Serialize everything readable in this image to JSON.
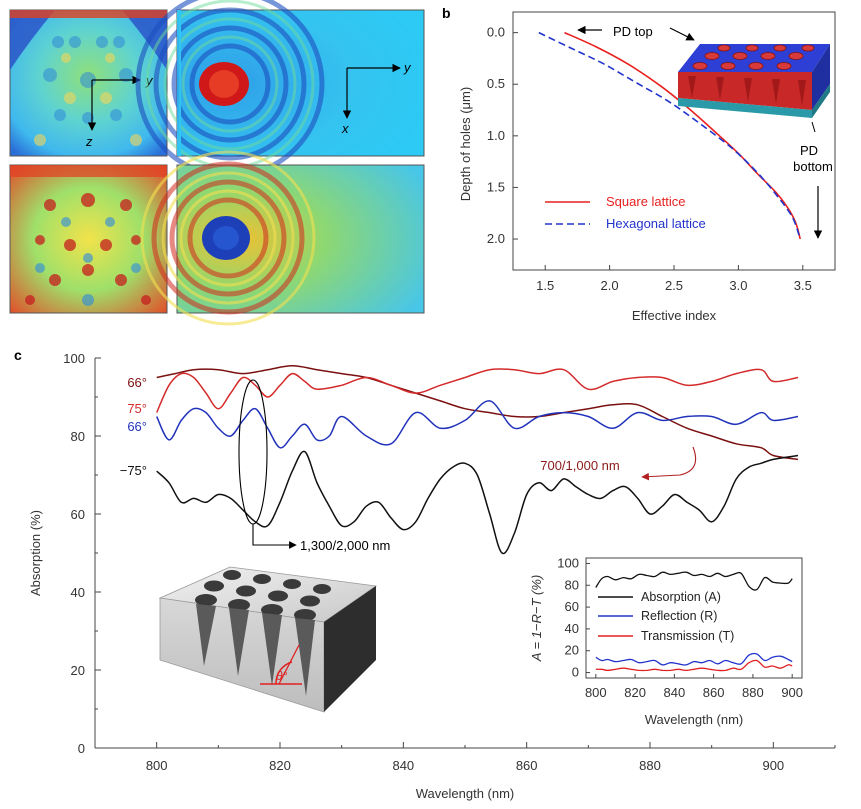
{
  "panel_labels": {
    "a": "a",
    "b": "b",
    "c": "c"
  },
  "panel_a": {
    "axes_tl": {
      "h": "y",
      "v": "z"
    },
    "axes_tr": {
      "h": "y",
      "v": "x"
    }
  },
  "chart_data": [
    {
      "id": "b",
      "type": "line",
      "xlabel": "Effective index",
      "ylabel": "Depth of holes (μm)",
      "xlim": [
        1.25,
        3.75
      ],
      "ylim": [
        2.3,
        -0.2
      ],
      "xticks": [
        "1.5",
        "2.0",
        "2.5",
        "3.0",
        "3.5"
      ],
      "yticks": [
        "0.0",
        "0.5",
        "1.0",
        "1.5",
        "2.0"
      ],
      "annotations": {
        "pd_top": "PD top",
        "pd_bottom_1": "PD",
        "pd_bottom_2": "bottom"
      },
      "series": [
        {
          "name": "Square lattice",
          "color": "#e8201e",
          "style": "solid",
          "x": [
            1.65,
            1.9,
            2.15,
            2.4,
            2.6,
            2.8,
            3.0,
            3.15,
            3.3,
            3.4,
            3.45,
            3.48
          ],
          "y": [
            0.0,
            0.14,
            0.31,
            0.52,
            0.72,
            0.94,
            1.17,
            1.37,
            1.56,
            1.73,
            1.86,
            2.0
          ]
        },
        {
          "name": "Hexagonal lattice",
          "color": "#2233cc",
          "style": "dashed",
          "x": [
            1.45,
            1.7,
            1.95,
            2.2,
            2.45,
            2.7,
            2.95,
            3.15,
            3.3,
            3.42,
            3.48
          ],
          "y": [
            0.0,
            0.15,
            0.3,
            0.48,
            0.66,
            0.88,
            1.12,
            1.36,
            1.58,
            1.79,
            2.0
          ]
        }
      ]
    },
    {
      "id": "c",
      "type": "line",
      "xlabel": "Wavelength (nm)",
      "ylabel": "Absorption (%)",
      "xlim": [
        790,
        910
      ],
      "ylim": [
        0,
        100
      ],
      "xticks": [
        "800",
        "820",
        "840",
        "860",
        "880",
        "900"
      ],
      "yticks": [
        "0",
        "20",
        "40",
        "60",
        "80",
        "100"
      ],
      "annotations": {
        "ellipse_label": "1,300/2,000 nm",
        "arrow_label": "700/1,000 nm",
        "theta": "θ°"
      },
      "series": [
        {
          "name": "66°",
          "color": "#7a1010",
          "style": "solid",
          "x": [
            800,
            803,
            806,
            810,
            814,
            818,
            822,
            826,
            830,
            834,
            838,
            842,
            846,
            850,
            854,
            858,
            862,
            866,
            870,
            874,
            878,
            882,
            886,
            890,
            894,
            898,
            900,
            904
          ],
          "y": [
            95,
            96,
            97,
            97,
            96,
            97,
            98,
            97,
            96,
            95,
            93,
            91,
            89,
            87,
            86,
            85,
            85,
            86,
            87,
            88,
            88,
            85,
            82,
            80,
            78,
            77,
            75,
            74
          ]
        },
        {
          "name": "75°",
          "color": "#d42a2a",
          "style": "solid",
          "x": [
            800,
            802,
            804,
            806,
            808,
            810,
            812,
            814,
            816,
            818,
            820,
            822,
            824,
            826,
            830,
            834,
            838,
            842,
            846,
            850,
            854,
            858,
            862,
            866,
            870,
            874,
            878,
            882,
            886,
            890,
            894,
            898,
            900,
            904
          ],
          "y": [
            86,
            93,
            96,
            95,
            91,
            87,
            91,
            95,
            93,
            90,
            93,
            96,
            94,
            92,
            93,
            95,
            93,
            91,
            93,
            95,
            97,
            97,
            96,
            97,
            92,
            94,
            95,
            95,
            93,
            94,
            96,
            97,
            94,
            95
          ]
        },
        {
          "name": "66°",
          "color": "#2233bb",
          "style": "solid",
          "x": [
            800,
            802,
            804,
            806,
            808,
            810,
            812,
            814,
            816,
            818,
            820,
            822,
            824,
            826,
            828,
            830,
            834,
            838,
            842,
            846,
            850,
            854,
            858,
            862,
            866,
            870,
            874,
            878,
            882,
            886,
            890,
            894,
            898,
            900,
            904
          ],
          "y": [
            85,
            79,
            84,
            87,
            86,
            82,
            80,
            84,
            87,
            82,
            77,
            80,
            83,
            79,
            80,
            85,
            80,
            78,
            86,
            82,
            84,
            89,
            82,
            85,
            86,
            85,
            82,
            86,
            84,
            85,
            85,
            83,
            86,
            84,
            85
          ]
        },
        {
          "name": "−75°",
          "color": "#111111",
          "style": "solid",
          "x": [
            800,
            802,
            804,
            806,
            808,
            810,
            812,
            814,
            816,
            818,
            820,
            822,
            824,
            826,
            828,
            830,
            832,
            834,
            836,
            838,
            840,
            842,
            844,
            846,
            848,
            850,
            852,
            854,
            856,
            858,
            860,
            862,
            864,
            866,
            868,
            870,
            872,
            874,
            876,
            878,
            880,
            882,
            884,
            886,
            888,
            890,
            892,
            894,
            896,
            898,
            900,
            904
          ],
          "y": [
            71,
            68,
            63,
            64,
            63,
            65,
            64,
            61,
            58,
            57,
            63,
            71,
            76,
            68,
            62,
            57,
            58,
            62,
            63,
            59,
            56,
            58,
            64,
            69,
            72,
            73,
            70,
            60,
            50,
            55,
            65,
            68,
            66,
            69,
            67,
            65,
            64,
            66,
            67,
            64,
            60,
            62,
            65,
            63,
            61,
            58,
            62,
            69,
            72,
            73,
            74,
            75
          ]
        }
      ],
      "inset": {
        "type": "line",
        "xlabel": "Wavelength (nm)",
        "ylabel": "A = 1−R−T (%)",
        "xlim": [
          795,
          905
        ],
        "ylim": [
          -5,
          105
        ],
        "xticks": [
          "800",
          "820",
          "840",
          "860",
          "880",
          "900"
        ],
        "yticks": [
          "0",
          "20",
          "40",
          "60",
          "80",
          "100"
        ],
        "series": [
          {
            "name": "Absorption (A)",
            "color": "#111111",
            "x": [
              800,
              803,
              806,
              810,
              814,
              818,
              822,
              826,
              830,
              834,
              838,
              842,
              846,
              850,
              854,
              858,
              862,
              866,
              870,
              874,
              878,
              882,
              886,
              890,
              894,
              898,
              900
            ],
            "y": [
              78,
              86,
              88,
              85,
              87,
              86,
              90,
              89,
              88,
              92,
              90,
              91,
              92,
              89,
              90,
              88,
              91,
              88,
              90,
              91,
              79,
              76,
              87,
              83,
              82,
              82,
              86
            ]
          },
          {
            "name": "Reflection (R)",
            "color": "#2233cc",
            "x": [
              800,
              803,
              806,
              810,
              814,
              818,
              822,
              826,
              830,
              834,
              838,
              842,
              846,
              850,
              854,
              858,
              862,
              866,
              870,
              874,
              878,
              882,
              886,
              890,
              894,
              898,
              900
            ],
            "y": [
              14,
              11,
              12,
              10,
              11,
              12,
              9,
              10,
              11,
              7,
              9,
              8,
              7,
              10,
              9,
              11,
              8,
              11,
              9,
              8,
              16,
              17,
              11,
              14,
              15,
              12,
              10
            ]
          },
          {
            "name": "Transmission (T)",
            "color": "#e02020",
            "x": [
              800,
              803,
              806,
              810,
              814,
              818,
              822,
              826,
              830,
              834,
              838,
              842,
              846,
              850,
              854,
              858,
              862,
              866,
              870,
              874,
              878,
              882,
              886,
              890,
              894,
              898,
              900
            ],
            "y": [
              3,
              3,
              2,
              3,
              4,
              3,
              2,
              2,
              3,
              2,
              2,
              3,
              2,
              3,
              4,
              3,
              2,
              2,
              4,
              3,
              9,
              11,
              5,
              6,
              4,
              7,
              6
            ]
          }
        ]
      }
    }
  ]
}
